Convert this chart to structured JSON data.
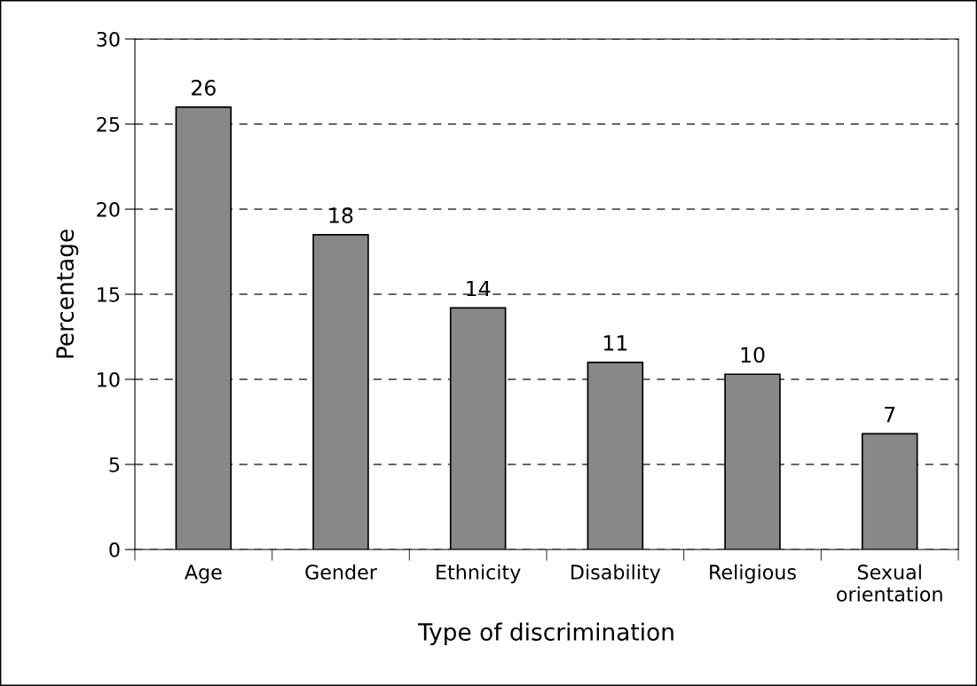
{
  "chart_data": {
    "type": "bar",
    "xlabel": "Type of discrimination",
    "ylabel": "Percentage",
    "categories": [
      "Age",
      "Gender",
      "Ethnicity",
      "Disability",
      "Religious",
      "Sexual\norientation"
    ],
    "values": [
      26,
      18.5,
      14.2,
      11.0,
      10.3,
      6.8
    ],
    "value_labels": [
      "26",
      "18",
      "14",
      "11",
      "10",
      "7"
    ],
    "color": "#87888a",
    "ylim": [
      0,
      30
    ],
    "yticks": [
      0,
      5,
      10,
      15,
      20,
      25,
      30
    ],
    "grid": "y",
    "legend": false
  }
}
